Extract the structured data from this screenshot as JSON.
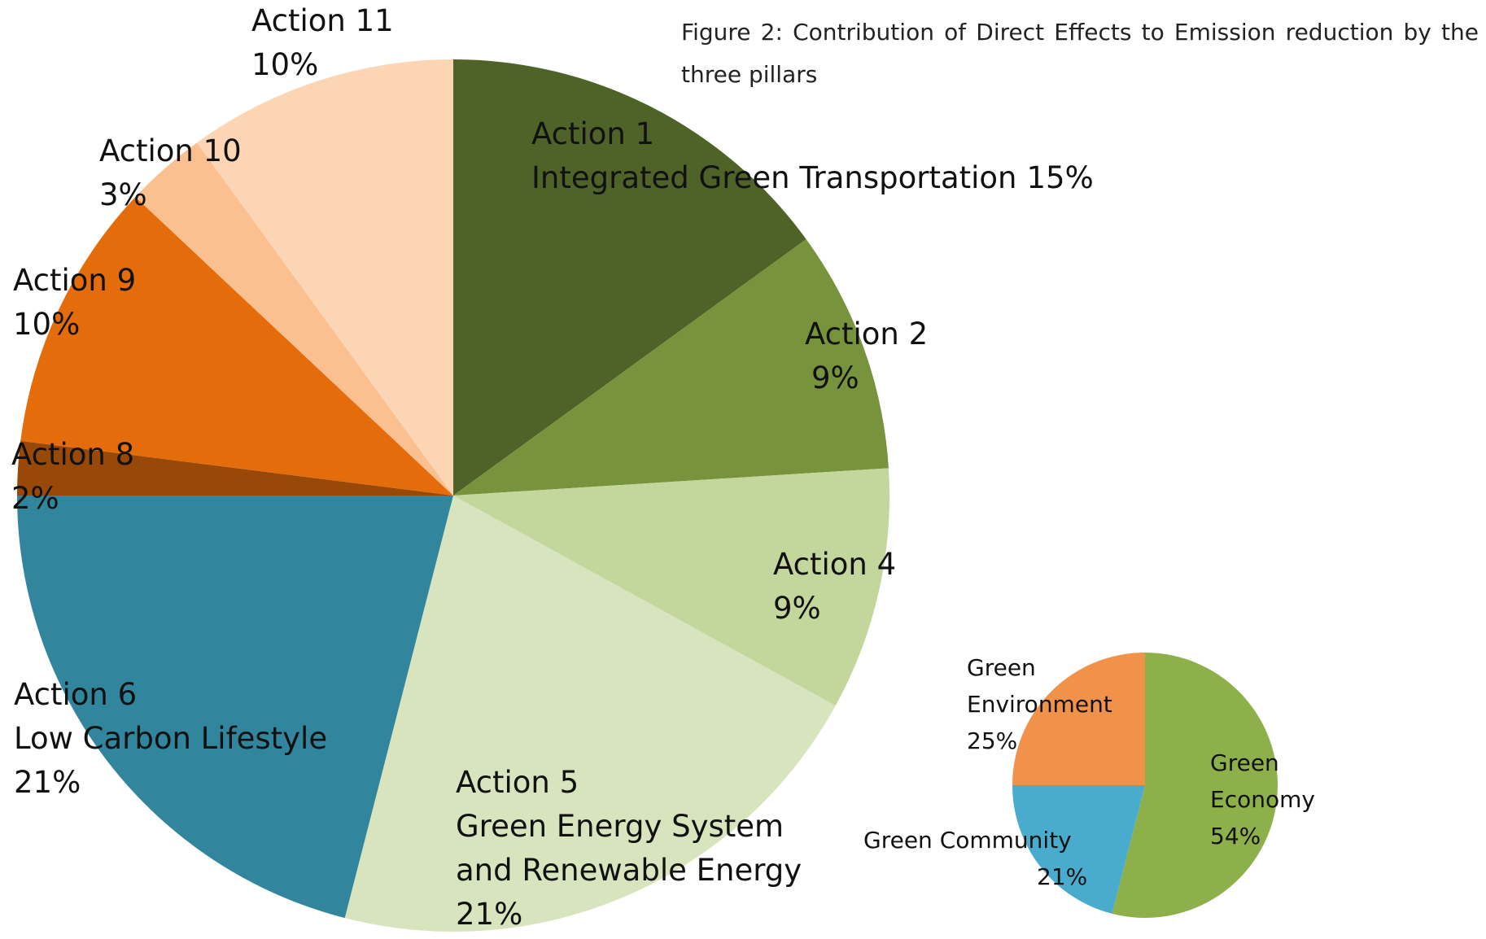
{
  "caption": "Figure 2: Contribution of Direct Effects to Emission reduction by the three pillars",
  "chart_data": [
    {
      "type": "pie",
      "categories": [
        "Action 1",
        "Action 2",
        "Action 4",
        "Action 5",
        "Action 6",
        "Action 8",
        "Action 9",
        "Action 10",
        "Action 11"
      ],
      "descriptions": [
        [
          "Integrated Green Transportation"
        ],
        null,
        null,
        [
          "Green Energy System",
          "and Renewable Energy"
        ],
        [
          "Low Carbon Lifestyle"
        ],
        null,
        null,
        null,
        null
      ],
      "values": [
        15,
        9,
        9,
        21,
        21,
        2,
        10,
        3,
        10
      ],
      "value_labels": [
        "15%",
        "9%",
        "9%",
        "21%",
        "21%",
        "2%",
        "10%",
        "3%",
        "10%"
      ],
      "colors": [
        "#4f6228",
        "#77933c",
        "#c3d69b",
        "#d7e4bd",
        "#31859c",
        "#984807",
        "#e46c0a",
        "#fac090",
        "#fcd5b5"
      ]
    },
    {
      "type": "pie",
      "categories": [
        "Green Economy",
        "Green Community",
        "Green Environment"
      ],
      "values": [
        54,
        21,
        25
      ],
      "value_labels": [
        "54%",
        "21%",
        "25%"
      ],
      "colors": [
        "#8db04a",
        "#4aaccc",
        "#f0924a"
      ]
    }
  ]
}
